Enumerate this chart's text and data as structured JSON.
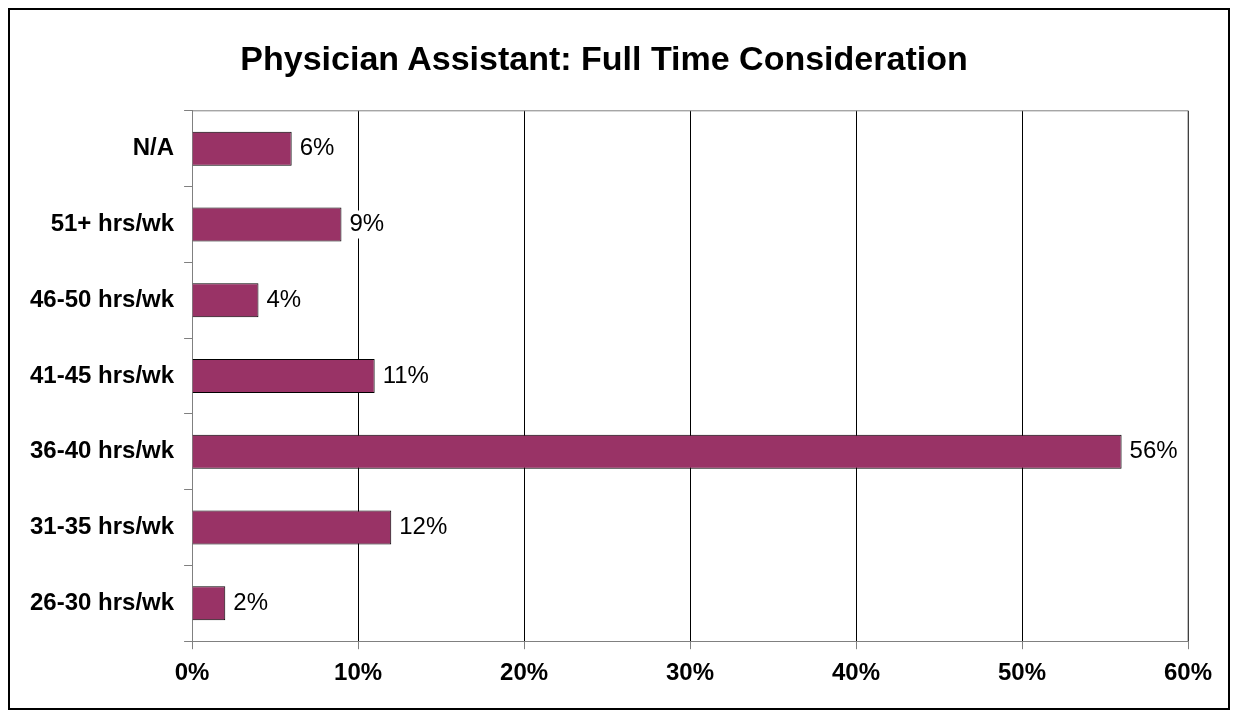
{
  "chart_data": {
    "type": "bar",
    "orientation": "horizontal",
    "title": "Physician Assistant: Full Time Consideration",
    "categories": [
      "N/A",
      "51+ hrs/wk",
      "46-50 hrs/wk",
      "41-45 hrs/wk",
      "36-40 hrs/wk",
      "31-35 hrs/wk",
      "26-30 hrs/wk"
    ],
    "values": [
      6,
      9,
      4,
      11,
      56,
      12,
      2
    ],
    "value_labels": [
      "6%",
      "9%",
      "4%",
      "11%",
      "56%",
      "12%",
      "2%"
    ],
    "color": "#993366",
    "xlim": [
      0,
      60
    ],
    "xticks": [
      {
        "value": 0,
        "label": "0%"
      },
      {
        "value": 10,
        "label": "10%"
      },
      {
        "value": 20,
        "label": "20%"
      },
      {
        "value": 30,
        "label": "30%"
      },
      {
        "value": 40,
        "label": "40%"
      },
      {
        "value": 50,
        "label": "50%"
      },
      {
        "value": 60,
        "label": "60%"
      }
    ],
    "grid": "x",
    "legend": false
  }
}
